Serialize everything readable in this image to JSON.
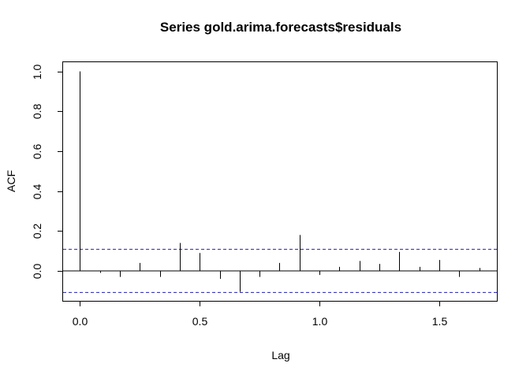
{
  "chart_data": {
    "type": "bar",
    "title": "Series  gold.arima.forecasts$residuals",
    "xlabel": "Lag",
    "ylabel": "ACF",
    "xlim": [
      -0.07,
      1.74
    ],
    "ylim": [
      -0.15,
      1.05
    ],
    "x_ticks": [
      0.0,
      0.5,
      1.0,
      1.5
    ],
    "x_tick_labels": [
      "0.0",
      "0.5",
      "1.0",
      "1.5"
    ],
    "y_ticks": [
      0.0,
      0.2,
      0.4,
      0.6,
      0.8,
      1.0
    ],
    "y_tick_labels": [
      "0.0",
      "0.2",
      "0.4",
      "0.6",
      "0.8",
      "1.0"
    ],
    "confidence_bound": 0.108,
    "grid": false,
    "lags": [
      0.0,
      0.0833,
      0.1667,
      0.25,
      0.3333,
      0.4167,
      0.5,
      0.5833,
      0.6667,
      0.75,
      0.8333,
      0.9167,
      1.0,
      1.0833,
      1.1667,
      1.25,
      1.3333,
      1.4167,
      1.5,
      1.5833,
      1.6667
    ],
    "acf": [
      1.0,
      -0.01,
      -0.03,
      0.04,
      -0.03,
      0.14,
      0.09,
      -0.04,
      -0.105,
      -0.03,
      0.04,
      0.18,
      -0.02,
      0.02,
      0.05,
      0.035,
      0.095,
      0.02,
      0.055,
      -0.03,
      0.015
    ],
    "colors": {
      "bars": "#000000",
      "ci_lines": "#1e1eb4",
      "frame": "#000000"
    }
  }
}
